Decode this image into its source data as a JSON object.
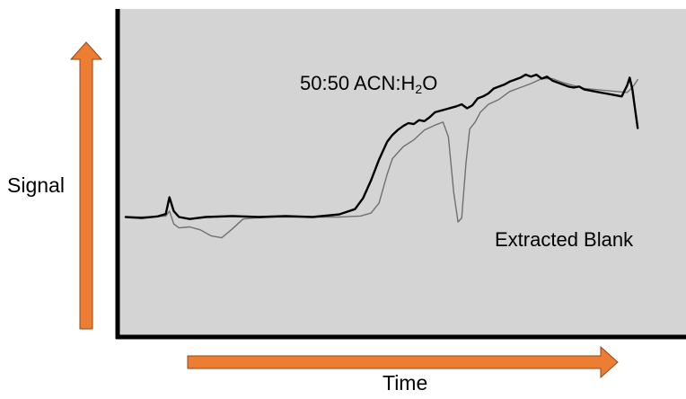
{
  "chart_data": {
    "type": "line",
    "title": "",
    "xlabel": "Time",
    "ylabel": "Signal",
    "xlim": [
      0,
      100
    ],
    "ylim": [
      0,
      100
    ],
    "grid": false,
    "legend": "none",
    "series": [
      {
        "name": "50:50 ACN:H2O",
        "color": "#000000",
        "width": 2.4,
        "x": [
          0,
          3,
          6,
          7.5,
          8.2,
          9,
          10,
          12,
          15,
          20,
          25,
          30,
          35,
          40,
          43,
          44.5,
          46,
          47.5,
          49,
          50,
          51,
          52,
          53,
          54,
          55,
          56,
          57,
          58,
          60,
          62,
          63,
          64,
          65,
          66,
          67,
          68,
          69,
          70,
          71,
          72,
          73,
          74,
          75,
          76,
          77,
          78,
          79,
          80,
          81,
          82,
          83,
          84,
          85,
          86,
          87,
          88,
          89,
          90,
          91,
          92,
          93,
          94,
          94.5,
          95,
          95.5,
          96
        ],
        "y": [
          27.5,
          27.0,
          27.8,
          29.0,
          37.5,
          30.5,
          27.5,
          26.5,
          27.5,
          28.0,
          27.5,
          28.0,
          27.5,
          28.8,
          31.5,
          37.0,
          46.0,
          56.5,
          65.5,
          69.0,
          71.5,
          73.5,
          75.0,
          74.5,
          76.5,
          76.0,
          78.0,
          80.5,
          82.0,
          83.5,
          84.5,
          82.5,
          84.0,
          87.5,
          88.5,
          90.0,
          92.5,
          93.5,
          94.5,
          96.0,
          97.0,
          98.0,
          99.5,
          98.5,
          99.5,
          97.5,
          98.5,
          96.5,
          95.5,
          94.5,
          93.5,
          93.0,
          93.5,
          92.0,
          91.5,
          91.0,
          90.5,
          90.0,
          89.5,
          89.0,
          88.5,
          94.0,
          98.0,
          92.0,
          82.0,
          72.5
        ]
      },
      {
        "name": "Extracted Blank",
        "color": "#707070",
        "width": 1.4,
        "x": [
          0,
          3,
          6,
          7.5,
          8.2,
          9,
          10,
          12,
          14,
          16,
          18,
          20,
          22,
          24,
          28,
          32,
          36,
          40,
          44,
          46,
          47.5,
          49,
          50,
          52,
          54,
          56,
          58,
          59.5,
          60.5,
          61.5,
          62.3,
          63,
          63.8,
          64.5,
          65.5,
          66.5,
          68,
          70,
          72,
          74,
          76,
          78,
          80,
          82,
          84,
          86,
          88,
          90,
          92,
          94,
          95,
          96
        ],
        "y": [
          27.5,
          27.5,
          27.8,
          28.0,
          30.5,
          24.0,
          22.0,
          22.5,
          21.0,
          18.0,
          17.0,
          21.5,
          26.5,
          27.0,
          27.5,
          27.5,
          27.5,
          27.5,
          28.0,
          29.5,
          34.5,
          49.0,
          57.0,
          63.0,
          66.5,
          71.5,
          74.0,
          75.5,
          68.0,
          40.0,
          25.0,
          27.0,
          55.0,
          72.0,
          75.5,
          80.5,
          84.5,
          87.0,
          91.0,
          93.0,
          95.0,
          97.5,
          97.5,
          95.5,
          94.0,
          92.5,
          92.0,
          91.5,
          91.0,
          90.5,
          93.0,
          97.0
        ]
      }
    ],
    "annotations": [
      "50:50 ACN:H2O",
      "Extracted Blank"
    ],
    "colors": {
      "plot_bg": "#d4d4d4",
      "frame": "#000000",
      "arrow": "#ed7d31",
      "arrow_edge": "#8a4a1f"
    }
  },
  "labels": {
    "y_axis": "Signal",
    "x_axis": "Time",
    "annotation_1_main": "50:50 ACN:H",
    "annotation_1_sub": "2",
    "annotation_1_end": "O",
    "annotation_2": "Extracted Blank"
  }
}
